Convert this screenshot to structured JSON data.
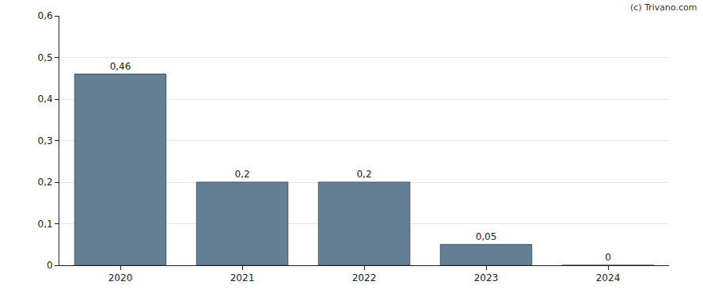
{
  "chart_data": {
    "type": "bar",
    "categories": [
      "2020",
      "2021",
      "2022",
      "2023",
      "2024"
    ],
    "values": [
      0.46,
      0.2,
      0.2,
      0.05,
      0
    ],
    "value_labels": [
      "0,46",
      "0,2",
      "0,2",
      "0,05",
      "0"
    ],
    "data_labels": true,
    "color": "#647f93",
    "ylim": [
      0,
      0.6
    ],
    "yticks": [
      0,
      {
        "value": 0.1,
        "label": "0,1"
      },
      {
        "value": 0.2,
        "label": "0,2"
      },
      {
        "value": 0.3,
        "label": "0,3"
      },
      {
        "value": 0.4,
        "label": "0,4"
      },
      {
        "value": 0.5,
        "label": "0,5"
      },
      {
        "value": 0.6,
        "label": "0,6"
      }
    ],
    "grid": true,
    "annotations": [
      "(c) Trivano.com"
    ]
  }
}
